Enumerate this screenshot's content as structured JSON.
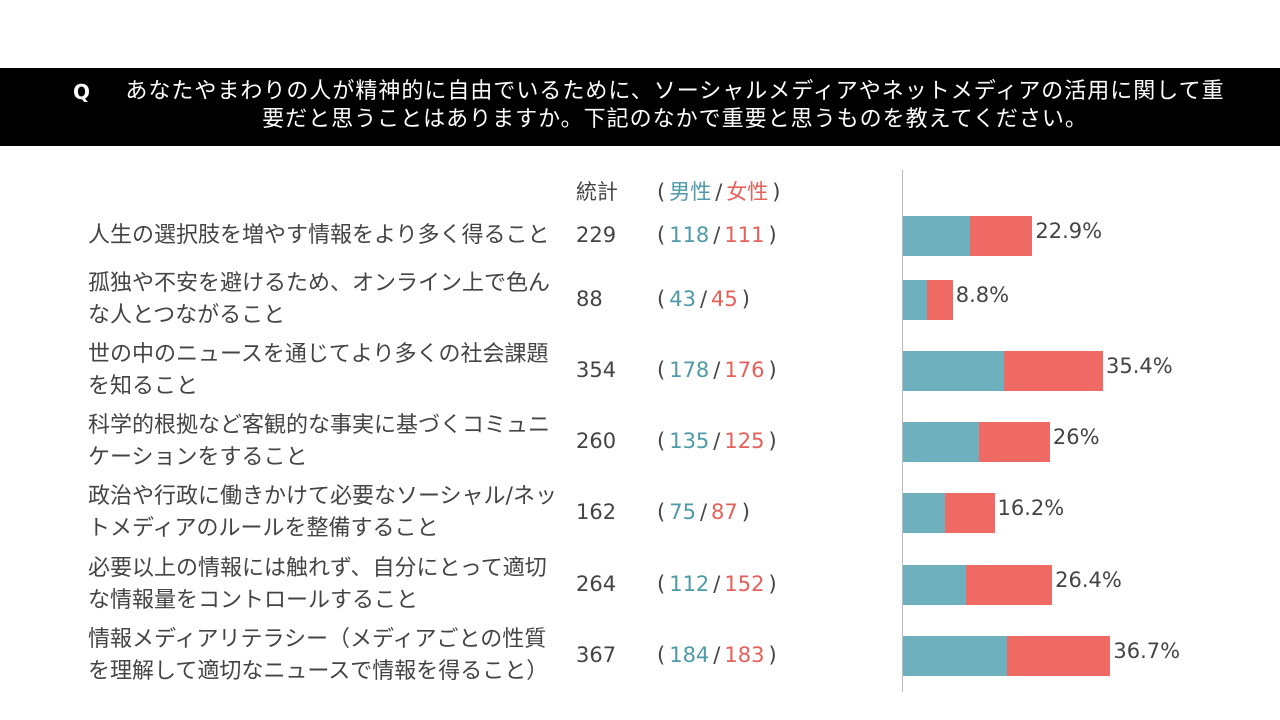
{
  "question": {
    "marker": "Q",
    "text": "あなたやまわりの人が精神的に自由でいるために、ソーシャルメディアやネットメディアの活用に関して重要だと思うことはありますか。下記のなかで重要と思うものを教えてください。"
  },
  "chart_data": {
    "type": "stacked_barh",
    "total_header": "統計",
    "paren_open": "(",
    "separator": "/",
    "paren_close": ")",
    "categories": [
      "人生の選択肢を増やす情報をより多く得ること",
      "孤独や不安を避けるため、オンライン上で色んな人とつながること",
      "世の中のニュースを通じてより多くの社会課題を知ること",
      "科学的根拠など客観的な事実に基づくコミュニケーションをすること",
      "政治や行政に働きかけて必要なソーシャル/ネットメディアのルールを整備すること",
      "必要以上の情報には触れず、自分にとって適切な情報量をコントロールすること",
      "情報メディアリテラシー（メディアごとの性質を理解して適切なニュースで情報を得ること）"
    ],
    "totals": [
      229,
      88,
      354,
      260,
      162,
      264,
      367
    ],
    "series": [
      {
        "name": "男性",
        "color": "#6fb0be",
        "text_color": "#4e9aa8",
        "values": [
          118,
          43,
          178,
          135,
          75,
          112,
          184
        ]
      },
      {
        "name": "女性",
        "color": "#ef6a64",
        "text_color": "#e6605a",
        "values": [
          111,
          45,
          176,
          125,
          87,
          152,
          183
        ]
      }
    ],
    "percent": {
      "values": [
        22.9,
        8.8,
        35.4,
        26,
        16.2,
        26.4,
        36.7
      ],
      "value_labels": [
        "22.9%",
        "8.8%",
        "35.4%",
        "26%",
        "16.2%",
        "26.4%",
        "36.7%"
      ]
    },
    "xlim": [
      0,
      400
    ]
  }
}
